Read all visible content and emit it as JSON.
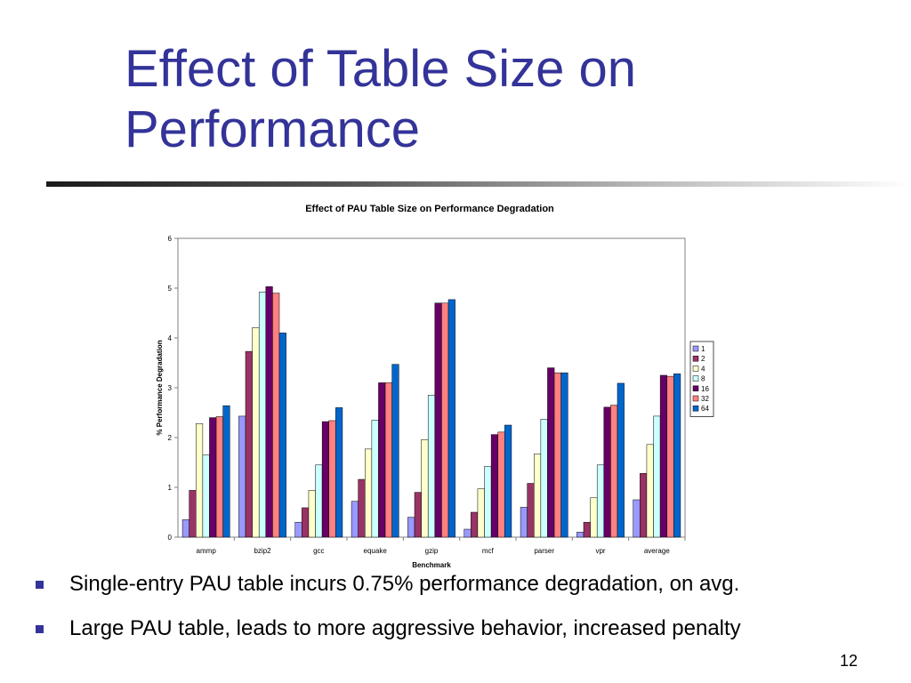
{
  "slide": {
    "title": "Effect of Table Size on Performance",
    "bullets": [
      "Single-entry PAU table incurs 0.75% performance degradation, on avg.",
      "Large PAU table, leads to more aggressive behavior, increased penalty"
    ],
    "page_number": "12",
    "colors": {
      "title": "#333399",
      "bullet": "#333399"
    }
  },
  "chart_data": {
    "type": "bar",
    "title": "Effect of PAU Table Size on Performance Degradation",
    "xlabel": "Benchmark",
    "ylabel": "% Performance Degradation",
    "ylim": [
      0,
      6
    ],
    "yticks": [
      0,
      1,
      2,
      3,
      4,
      5,
      6
    ],
    "grid": false,
    "legend_position": "right",
    "categories": [
      "ammp",
      "bzip2",
      "gcc",
      "equake",
      "gzip",
      "mcf",
      "parser",
      "vpr",
      "average"
    ],
    "series": [
      {
        "name": "1",
        "color": "#9999ff",
        "values": [
          0.35,
          2.43,
          0.3,
          0.72,
          0.4,
          0.16,
          0.6,
          0.1,
          0.75
        ]
      },
      {
        "name": "2",
        "color": "#993366",
        "values": [
          0.94,
          3.73,
          0.59,
          1.16,
          0.9,
          0.5,
          1.08,
          0.3,
          1.28
        ]
      },
      {
        "name": "4",
        "color": "#ffffcc",
        "values": [
          2.28,
          4.21,
          0.94,
          1.77,
          1.96,
          0.97,
          1.67,
          0.79,
          1.86
        ]
      },
      {
        "name": "8",
        "color": "#ccffff",
        "values": [
          1.65,
          4.92,
          1.45,
          2.35,
          2.85,
          1.42,
          2.37,
          1.45,
          2.43
        ]
      },
      {
        "name": "16",
        "color": "#660066",
        "values": [
          2.4,
          5.03,
          2.32,
          3.1,
          4.7,
          2.06,
          3.4,
          2.61,
          3.25
        ]
      },
      {
        "name": "32",
        "color": "#ff8080",
        "values": [
          2.42,
          4.9,
          2.34,
          3.1,
          4.7,
          2.11,
          3.3,
          2.65,
          3.23
        ]
      },
      {
        "name": "64",
        "color": "#0066cc",
        "values": [
          2.64,
          4.1,
          2.6,
          3.47,
          4.77,
          2.25,
          3.3,
          3.09,
          3.28
        ]
      }
    ]
  }
}
